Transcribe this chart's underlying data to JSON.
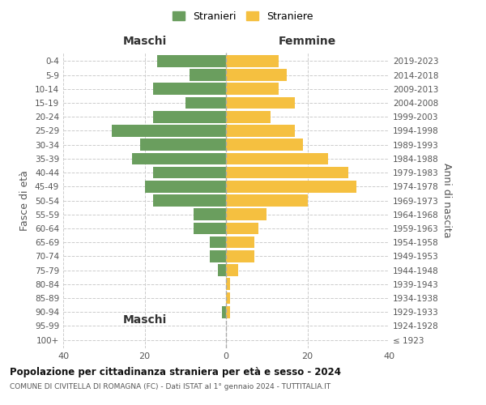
{
  "age_groups": [
    "100+",
    "95-99",
    "90-94",
    "85-89",
    "80-84",
    "75-79",
    "70-74",
    "65-69",
    "60-64",
    "55-59",
    "50-54",
    "45-49",
    "40-44",
    "35-39",
    "30-34",
    "25-29",
    "20-24",
    "15-19",
    "10-14",
    "5-9",
    "0-4"
  ],
  "birth_years": [
    "≤ 1923",
    "1924-1928",
    "1929-1933",
    "1934-1938",
    "1939-1943",
    "1944-1948",
    "1949-1953",
    "1954-1958",
    "1959-1963",
    "1964-1968",
    "1969-1973",
    "1974-1978",
    "1979-1983",
    "1984-1988",
    "1989-1993",
    "1994-1998",
    "1999-2003",
    "2004-2008",
    "2009-2013",
    "2014-2018",
    "2019-2023"
  ],
  "maschi": [
    0,
    0,
    1,
    0,
    0,
    2,
    4,
    4,
    8,
    8,
    18,
    20,
    18,
    23,
    21,
    28,
    18,
    10,
    18,
    9,
    17
  ],
  "femmine": [
    0,
    0,
    1,
    1,
    1,
    3,
    7,
    7,
    8,
    10,
    20,
    32,
    30,
    25,
    19,
    17,
    11,
    17,
    13,
    15,
    13
  ],
  "maschi_color": "#6a9e5e",
  "femmine_color": "#f5c040",
  "title": "Popolazione per cittadinanza straniera per età e sesso - 2024",
  "subtitle": "COMUNE DI CIVITELLA DI ROMAGNA (FC) - Dati ISTAT al 1° gennaio 2024 - TUTTITALIA.IT",
  "ylabel_left": "Fasce di età",
  "ylabel_right": "Anni di nascita",
  "xlabel_left": "Maschi",
  "xlabel_right": "Femmine",
  "xlim": 40,
  "legend_maschi": "Stranieri",
  "legend_femmine": "Straniere",
  "background_color": "#ffffff",
  "grid_color": "#cccccc",
  "bar_height": 0.85
}
